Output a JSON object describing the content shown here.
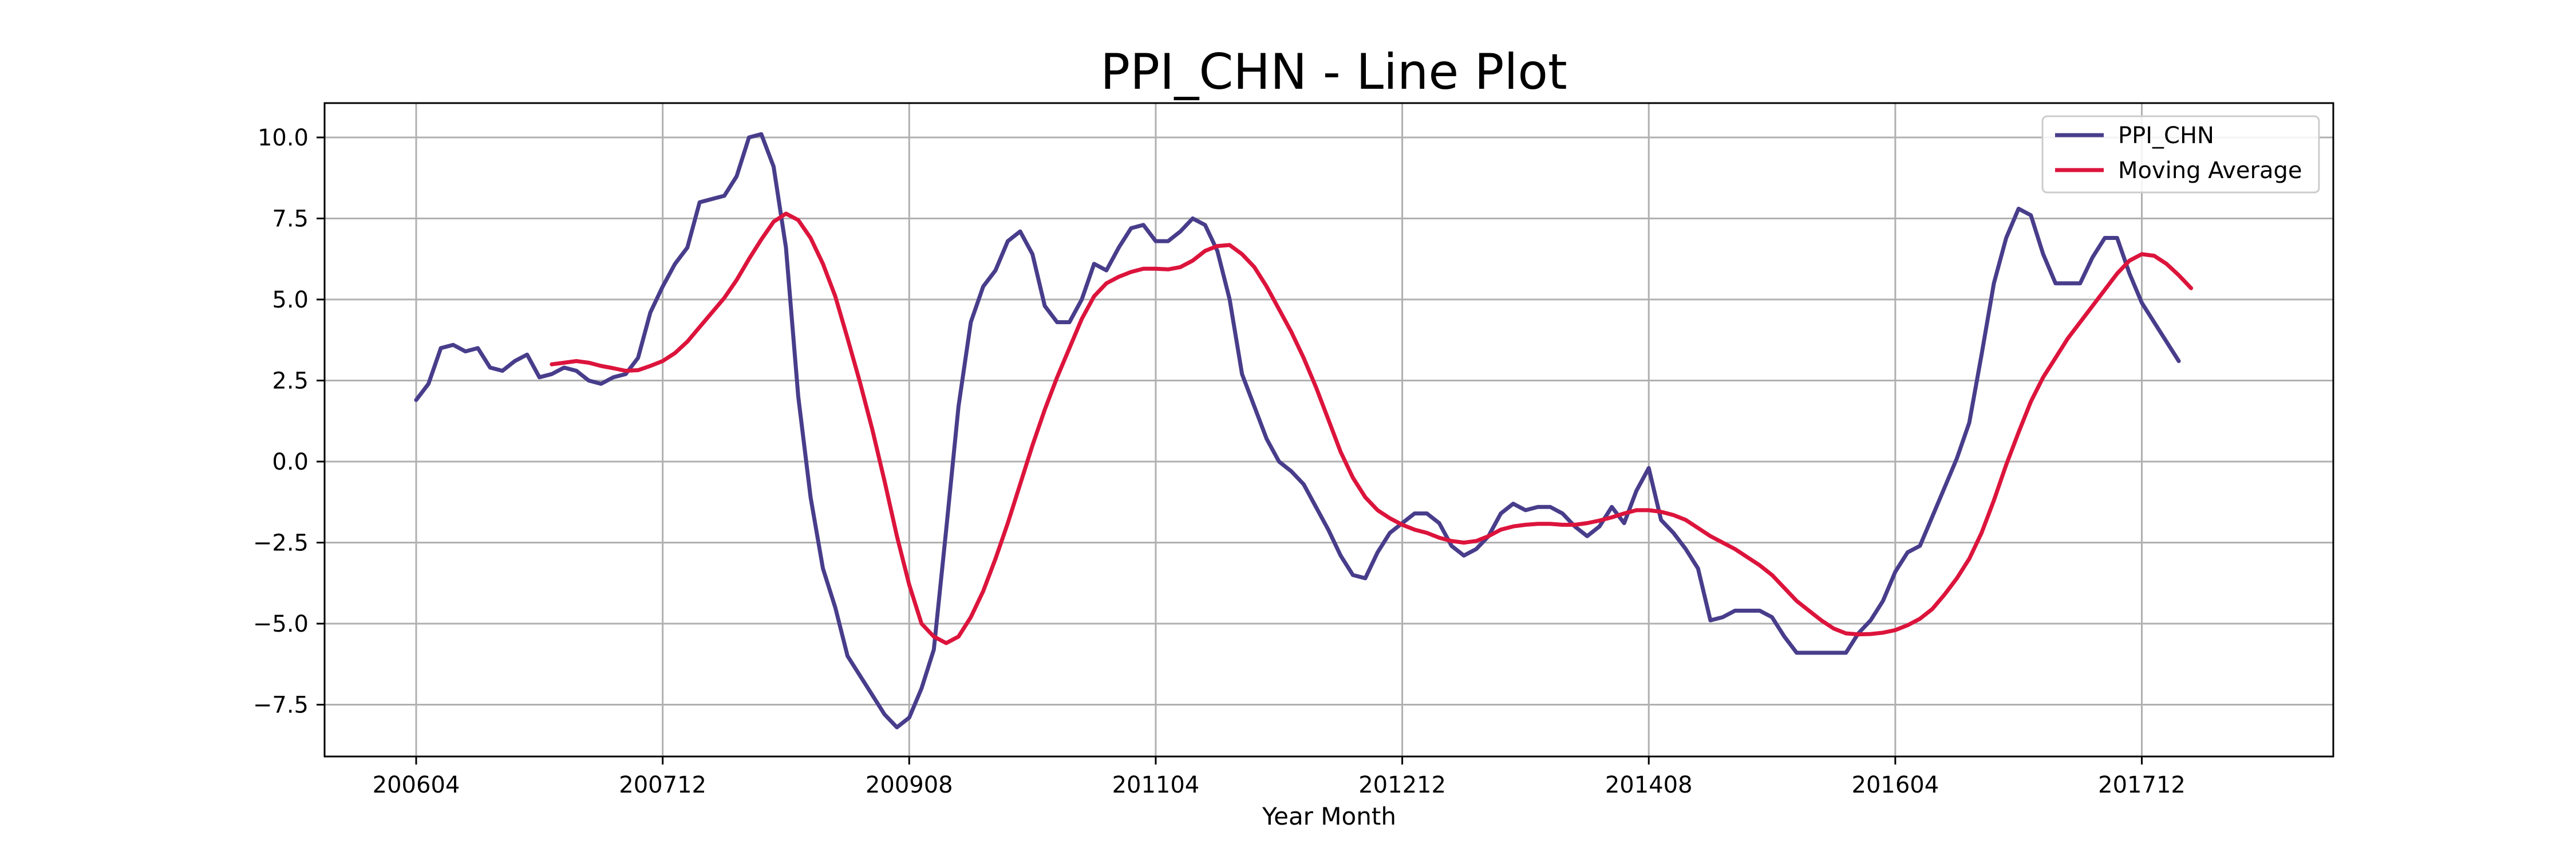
{
  "chart_data": {
    "type": "line",
    "title": "PPI_CHN - Line Plot",
    "xlabel": "Year Month",
    "ylabel": "",
    "x_ticks": [
      "200604",
      "200712",
      "200908",
      "201104",
      "201212",
      "201408",
      "201604",
      "201712"
    ],
    "y_ticks": [
      10.0,
      7.5,
      5.0,
      2.5,
      0.0,
      -2.5,
      -5.0,
      -7.5
    ],
    "y_tick_labels": [
      "10.0",
      "7.5",
      "5.0",
      "2.5",
      "0.0",
      "−2.5",
      "−5.0",
      "−7.5"
    ],
    "ylim": [
      -9.0,
      11.0
    ],
    "grid": true,
    "legend_position": "top-right",
    "series": [
      {
        "name": "PPI_CHN",
        "color": "#483d8b",
        "points": [
          [
            "200604",
            1.9
          ],
          [
            "200605",
            2.4
          ],
          [
            "200606",
            3.5
          ],
          [
            "200607",
            3.6
          ],
          [
            "200608",
            3.4
          ],
          [
            "200609",
            3.5
          ],
          [
            "200610",
            2.9
          ],
          [
            "200611",
            2.8
          ],
          [
            "200612",
            3.1
          ],
          [
            "200701",
            3.3
          ],
          [
            "200702",
            2.6
          ],
          [
            "200703",
            2.7
          ],
          [
            "200704",
            2.9
          ],
          [
            "200705",
            2.8
          ],
          [
            "200706",
            2.5
          ],
          [
            "200707",
            2.4
          ],
          [
            "200708",
            2.6
          ],
          [
            "200709",
            2.7
          ],
          [
            "200710",
            3.2
          ],
          [
            "200711",
            4.6
          ],
          [
            "200712",
            5.4
          ],
          [
            "200801",
            6.1
          ],
          [
            "200802",
            6.6
          ],
          [
            "200803",
            8.0
          ],
          [
            "200804",
            8.1
          ],
          [
            "200805",
            8.2
          ],
          [
            "200806",
            8.8
          ],
          [
            "200807",
            10.0
          ],
          [
            "200808",
            10.1
          ],
          [
            "200809",
            9.1
          ],
          [
            "200810",
            6.6
          ],
          [
            "200811",
            2.0
          ],
          [
            "200812",
            -1.1
          ],
          [
            "200901",
            -3.3
          ],
          [
            "200902",
            -4.5
          ],
          [
            "200903",
            -6.0
          ],
          [
            "200904",
            -6.6
          ],
          [
            "200905",
            -7.2
          ],
          [
            "200906",
            -7.8
          ],
          [
            "200907",
            -8.2
          ],
          [
            "200908",
            -7.9
          ],
          [
            "200909",
            -7.0
          ],
          [
            "200910",
            -5.8
          ],
          [
            "200911",
            -2.1
          ],
          [
            "200912",
            1.7
          ],
          [
            "201001",
            4.3
          ],
          [
            "201002",
            5.4
          ],
          [
            "201003",
            5.9
          ],
          [
            "201004",
            6.8
          ],
          [
            "201005",
            7.1
          ],
          [
            "201006",
            6.4
          ],
          [
            "201007",
            4.8
          ],
          [
            "201008",
            4.3
          ],
          [
            "201009",
            4.3
          ],
          [
            "201010",
            5.0
          ],
          [
            "201011",
            6.1
          ],
          [
            "201012",
            5.9
          ],
          [
            "201101",
            6.6
          ],
          [
            "201102",
            7.2
          ],
          [
            "201103",
            7.3
          ],
          [
            "201104",
            6.8
          ],
          [
            "201105",
            6.8
          ],
          [
            "201106",
            7.1
          ],
          [
            "201107",
            7.5
          ],
          [
            "201108",
            7.3
          ],
          [
            "201109",
            6.5
          ],
          [
            "201110",
            5.0
          ],
          [
            "201111",
            2.7
          ],
          [
            "201112",
            1.7
          ],
          [
            "201201",
            0.7
          ],
          [
            "201202",
            0.0
          ],
          [
            "201203",
            -0.3
          ],
          [
            "201204",
            -0.7
          ],
          [
            "201205",
            -1.4
          ],
          [
            "201206",
            -2.1
          ],
          [
            "201207",
            -2.9
          ],
          [
            "201208",
            -3.5
          ],
          [
            "201209",
            -3.6
          ],
          [
            "201210",
            -2.8
          ],
          [
            "201211",
            -2.2
          ],
          [
            "201212",
            -1.9
          ],
          [
            "201301",
            -1.6
          ],
          [
            "201302",
            -1.6
          ],
          [
            "201303",
            -1.9
          ],
          [
            "201304",
            -2.6
          ],
          [
            "201305",
            -2.9
          ],
          [
            "201306",
            -2.7
          ],
          [
            "201307",
            -2.3
          ],
          [
            "201308",
            -1.6
          ],
          [
            "201309",
            -1.3
          ],
          [
            "201310",
            -1.5
          ],
          [
            "201311",
            -1.4
          ],
          [
            "201312",
            -1.4
          ],
          [
            "201401",
            -1.6
          ],
          [
            "201402",
            -2.0
          ],
          [
            "201403",
            -2.3
          ],
          [
            "201404",
            -2.0
          ],
          [
            "201405",
            -1.4
          ],
          [
            "201406",
            -1.9
          ],
          [
            "201407",
            -0.9
          ],
          [
            "201408",
            -0.2
          ],
          [
            "201409",
            -1.8
          ],
          [
            "201410",
            -2.2
          ],
          [
            "201411",
            -2.7
          ],
          [
            "201412",
            -3.3
          ],
          [
            "201501",
            -4.9
          ],
          [
            "201502",
            -4.8
          ],
          [
            "201503",
            -4.6
          ],
          [
            "201504",
            -4.6
          ],
          [
            "201505",
            -4.6
          ],
          [
            "201506",
            -4.8
          ],
          [
            "201507",
            -5.4
          ],
          [
            "201508",
            -5.9
          ],
          [
            "201509",
            -5.9
          ],
          [
            "201510",
            -5.9
          ],
          [
            "201511",
            -5.9
          ],
          [
            "201512",
            -5.9
          ],
          [
            "201601",
            -5.3
          ],
          [
            "201602",
            -4.9
          ],
          [
            "201603",
            -4.3
          ],
          [
            "201604",
            -3.4
          ],
          [
            "201605",
            -2.8
          ],
          [
            "201606",
            -2.6
          ],
          [
            "201607",
            -1.7
          ],
          [
            "201608",
            -0.8
          ],
          [
            "201609",
            0.1
          ],
          [
            "201610",
            1.2
          ],
          [
            "201611",
            3.3
          ],
          [
            "201612",
            5.5
          ],
          [
            "201701",
            6.9
          ],
          [
            "201702",
            7.8
          ],
          [
            "201703",
            7.6
          ],
          [
            "201704",
            6.4
          ],
          [
            "201705",
            5.5
          ],
          [
            "201706",
            5.5
          ],
          [
            "201707",
            5.5
          ],
          [
            "201708",
            6.3
          ],
          [
            "201709",
            6.9
          ],
          [
            "201710",
            6.9
          ],
          [
            "201711",
            5.8
          ],
          [
            "201712",
            4.9
          ],
          [
            "201801",
            4.3
          ],
          [
            "201802",
            3.7
          ],
          [
            "201803",
            3.1
          ]
        ]
      },
      {
        "name": "Moving Average",
        "color": "#dc143c",
        "points": [
          [
            "200703",
            3.0
          ],
          [
            "200704",
            3.05
          ],
          [
            "200705",
            3.1
          ],
          [
            "200706",
            3.05
          ],
          [
            "200707",
            2.95
          ],
          [
            "200708",
            2.88
          ],
          [
            "200709",
            2.8
          ],
          [
            "200710",
            2.82
          ],
          [
            "200711",
            2.95
          ],
          [
            "200712",
            3.1
          ],
          [
            "200801",
            3.35
          ],
          [
            "200802",
            3.7
          ],
          [
            "200803",
            4.15
          ],
          [
            "200804",
            4.6
          ],
          [
            "200805",
            5.05
          ],
          [
            "200806",
            5.6
          ],
          [
            "200807",
            6.25
          ],
          [
            "200808",
            6.85
          ],
          [
            "200809",
            7.4
          ],
          [
            "200810",
            7.65
          ],
          [
            "200811",
            7.45
          ],
          [
            "200812",
            6.9
          ],
          [
            "200901",
            6.1
          ],
          [
            "200902",
            5.1
          ],
          [
            "200903",
            3.8
          ],
          [
            "200904",
            2.45
          ],
          [
            "200905",
            1.0
          ],
          [
            "200906",
            -0.6
          ],
          [
            "200907",
            -2.3
          ],
          [
            "200908",
            -3.8
          ],
          [
            "200909",
            -5.0
          ],
          [
            "200910",
            -5.4
          ],
          [
            "200911",
            -5.6
          ],
          [
            "200912",
            -5.4
          ],
          [
            "201001",
            -4.8
          ],
          [
            "201002",
            -4.0
          ],
          [
            "201003",
            -3.0
          ],
          [
            "201004",
            -1.9
          ],
          [
            "201005",
            -0.7
          ],
          [
            "201006",
            0.5
          ],
          [
            "201007",
            1.6
          ],
          [
            "201008",
            2.6
          ],
          [
            "201009",
            3.5
          ],
          [
            "201010",
            4.4
          ],
          [
            "201011",
            5.1
          ],
          [
            "201012",
            5.5
          ],
          [
            "201101",
            5.7
          ],
          [
            "201102",
            5.85
          ],
          [
            "201103",
            5.95
          ],
          [
            "201104",
            5.95
          ],
          [
            "201105",
            5.93
          ],
          [
            "201106",
            6.0
          ],
          [
            "201107",
            6.2
          ],
          [
            "201108",
            6.5
          ],
          [
            "201109",
            6.65
          ],
          [
            "201110",
            6.68
          ],
          [
            "201111",
            6.4
          ],
          [
            "201112",
            6.0
          ],
          [
            "201201",
            5.4
          ],
          [
            "201202",
            4.7
          ],
          [
            "201203",
            4.0
          ],
          [
            "201204",
            3.2
          ],
          [
            "201205",
            2.3
          ],
          [
            "201206",
            1.3
          ],
          [
            "201207",
            0.3
          ],
          [
            "201208",
            -0.5
          ],
          [
            "201209",
            -1.1
          ],
          [
            "201210",
            -1.5
          ],
          [
            "201211",
            -1.75
          ],
          [
            "201212",
            -1.95
          ],
          [
            "201301",
            -2.1
          ],
          [
            "201302",
            -2.2
          ],
          [
            "201303",
            -2.35
          ],
          [
            "201304",
            -2.45
          ],
          [
            "201305",
            -2.5
          ],
          [
            "201306",
            -2.45
          ],
          [
            "201307",
            -2.3
          ],
          [
            "201308",
            -2.1
          ],
          [
            "201309",
            -2.0
          ],
          [
            "201310",
            -1.95
          ],
          [
            "201311",
            -1.92
          ],
          [
            "201312",
            -1.92
          ],
          [
            "201401",
            -1.95
          ],
          [
            "201402",
            -1.95
          ],
          [
            "201403",
            -1.9
          ],
          [
            "201404",
            -1.82
          ],
          [
            "201405",
            -1.72
          ],
          [
            "201406",
            -1.6
          ],
          [
            "201407",
            -1.5
          ],
          [
            "201408",
            -1.5
          ],
          [
            "201409",
            -1.55
          ],
          [
            "201410",
            -1.65
          ],
          [
            "201411",
            -1.8
          ],
          [
            "201412",
            -2.05
          ],
          [
            "201501",
            -2.3
          ],
          [
            "201502",
            -2.5
          ],
          [
            "201503",
            -2.7
          ],
          [
            "201504",
            -2.95
          ],
          [
            "201505",
            -3.2
          ],
          [
            "201506",
            -3.5
          ],
          [
            "201507",
            -3.9
          ],
          [
            "201508",
            -4.3
          ],
          [
            "201509",
            -4.6
          ],
          [
            "201510",
            -4.9
          ],
          [
            "201511",
            -5.15
          ],
          [
            "201512",
            -5.3
          ],
          [
            "201601",
            -5.33
          ],
          [
            "201602",
            -5.32
          ],
          [
            "201603",
            -5.28
          ],
          [
            "201604",
            -5.2
          ],
          [
            "201605",
            -5.05
          ],
          [
            "201606",
            -4.85
          ],
          [
            "201607",
            -4.55
          ],
          [
            "201608",
            -4.1
          ],
          [
            "201609",
            -3.6
          ],
          [
            "201610",
            -3.0
          ],
          [
            "201611",
            -2.2
          ],
          [
            "201612",
            -1.2
          ],
          [
            "201701",
            -0.1
          ],
          [
            "201702",
            0.9
          ],
          [
            "201703",
            1.85
          ],
          [
            "201704",
            2.6
          ],
          [
            "201705",
            3.2
          ],
          [
            "201706",
            3.8
          ],
          [
            "201707",
            4.3
          ],
          [
            "201708",
            4.8
          ],
          [
            "201709",
            5.3
          ],
          [
            "201710",
            5.8
          ],
          [
            "201711",
            6.2
          ],
          [
            "201712",
            6.4
          ],
          [
            "201801",
            6.35
          ],
          [
            "201802",
            6.1
          ],
          [
            "201803",
            5.75
          ],
          [
            "201804",
            5.35
          ]
        ]
      }
    ]
  }
}
